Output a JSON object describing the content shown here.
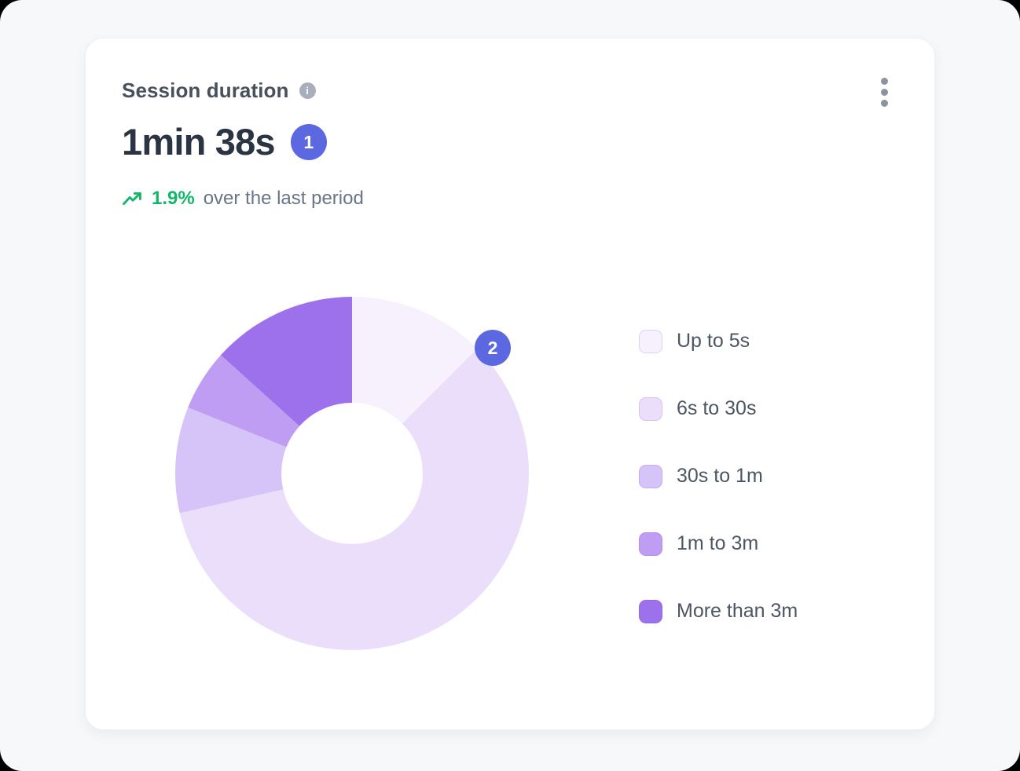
{
  "page": {
    "background": "#f7f8fa"
  },
  "card": {
    "title": "Session duration",
    "metric": {
      "value": "1min 38s",
      "badge": "1"
    },
    "trend": {
      "value": "1.9%",
      "label": "over the last period"
    },
    "chart_badge": "2"
  },
  "icons": {
    "info": "info-icon",
    "info_glyph": "i",
    "more_options": "kebab-menu-icon",
    "trend": "trending-up-icon"
  },
  "colors": {
    "badge_accent": "#5b68df",
    "trend_green": "#12b76a",
    "title_text": "#48505e",
    "metric_text": "#2b3442",
    "muted_text": "#697586",
    "legend_text": "#4c5663",
    "card_background": "#ffffff",
    "page_background": "#f7f8fa"
  },
  "chart_data": {
    "type": "pie",
    "donut": true,
    "title": "Session duration",
    "categories": [
      "Up to 5s",
      "6s to 30s",
      "30s to 1m",
      "1m to 3m",
      "More than 3m"
    ],
    "values": [
      12.5,
      58.9,
      9.7,
      5.6,
      13.3
    ],
    "unit": "percent",
    "colors": [
      "#f7f0fd",
      "#eadefb",
      "#d6c3f7",
      "#bf9df3",
      "#9d71ec"
    ],
    "start_angle_deg": 0,
    "direction": "clockwise",
    "inner_radius_ratio": 0.4,
    "legend_position": "right",
    "annotation": {
      "label": "2",
      "at_boundary_deg": 45
    }
  }
}
